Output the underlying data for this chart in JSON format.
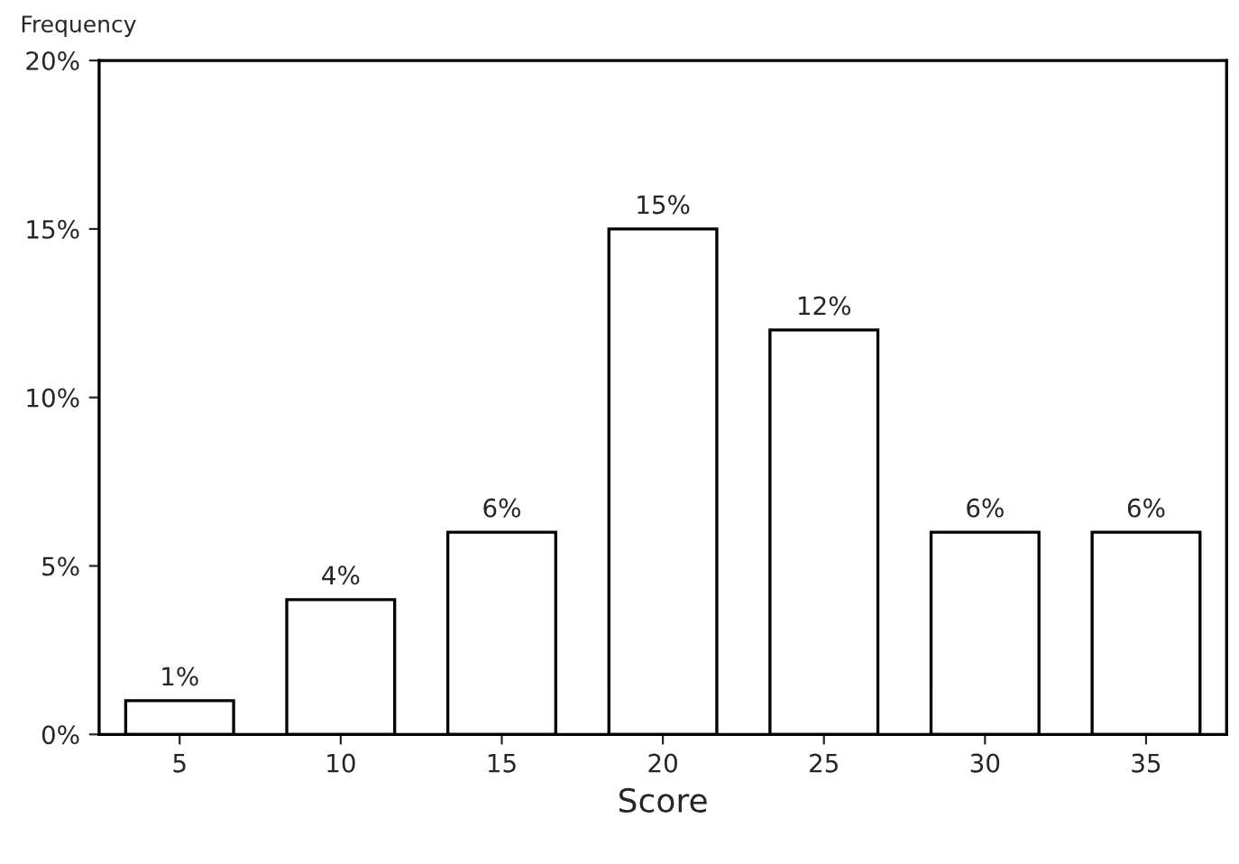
{
  "chart_data": {
    "type": "bar",
    "xlabel": "Score",
    "ylabel": "Frequency",
    "categories": [
      "5",
      "10",
      "15",
      "20",
      "25",
      "30",
      "35"
    ],
    "values": [
      1,
      4,
      6,
      15,
      12,
      6,
      6
    ],
    "value_labels": [
      "1%",
      "4%",
      "6%",
      "15%",
      "12%",
      "6%",
      "6%"
    ],
    "color": "#ffffff",
    "ylim": [
      0,
      20
    ],
    "yticks": [
      {
        "value": 0,
        "label": "0%"
      },
      {
        "value": 5,
        "label": "5%"
      },
      {
        "value": 10,
        "label": "10%"
      },
      {
        "value": 15,
        "label": "15%"
      },
      {
        "value": 20,
        "label": "20%"
      }
    ],
    "grid": false,
    "legend": false
  }
}
